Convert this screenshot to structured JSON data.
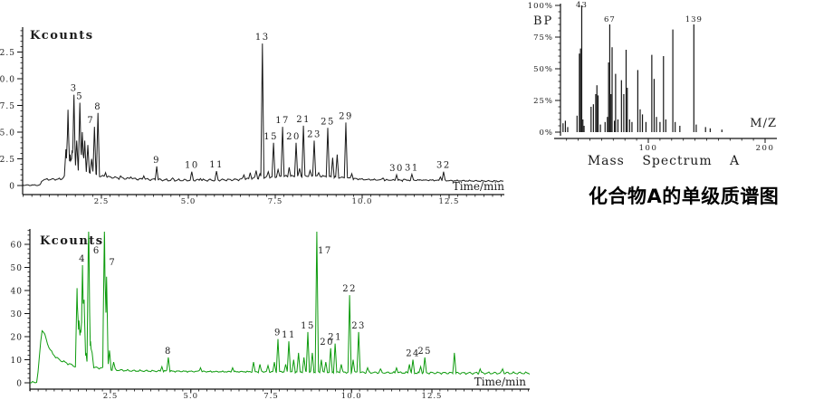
{
  "captions": {
    "ms_caption": "Mass Spectrum A",
    "cn_caption": "化合物A的单级质谱图"
  },
  "colors": {
    "top_trace": "#1a1a1a",
    "bottom_trace": "#0e9b0e",
    "ms_bars": "#161616",
    "text": "#1c1c1c"
  },
  "chart_data": [
    {
      "id": "tic_top",
      "type": "line",
      "title": "Kcounts",
      "xlabel": "Time/min",
      "x_tick_labels": [
        "2.5",
        "5.0",
        "7.5",
        "10.0",
        "12.5"
      ],
      "y_tick_labels": [
        "0",
        "2.5",
        "5.0",
        "7.5",
        "10.0",
        "12.5"
      ],
      "x_range": [
        0.23,
        14.1
      ],
      "y_range": [
        0,
        14.6
      ],
      "baseline": [
        [
          0.23,
          0.02
        ],
        [
          0.74,
          0.02
        ],
        [
          0.8,
          0.55
        ],
        [
          1.35,
          0.6
        ],
        [
          1.45,
          0.9
        ],
        [
          1.75,
          1.4
        ],
        [
          2.05,
          1.3
        ],
        [
          2.3,
          1.0
        ],
        [
          2.55,
          0.85
        ],
        [
          3.0,
          0.7
        ],
        [
          3.6,
          0.6
        ],
        [
          4.5,
          0.5
        ],
        [
          5.5,
          0.5
        ],
        [
          6.4,
          0.55
        ],
        [
          7.0,
          0.7
        ],
        [
          7.6,
          0.85
        ],
        [
          8.3,
          0.9
        ],
        [
          9.0,
          0.85
        ],
        [
          9.6,
          0.7
        ],
        [
          10.1,
          0.55
        ],
        [
          11.0,
          0.5
        ],
        [
          12.0,
          0.5
        ],
        [
          12.6,
          0.45
        ],
        [
          14.1,
          0.4
        ]
      ],
      "peaks_labeled": [
        {
          "label": "3",
          "t": 1.71,
          "v": 8.5
        },
        {
          "label": "5",
          "t": 1.88,
          "v": 7.75
        },
        {
          "label": "7",
          "t": 2.3,
          "v": 5.5,
          "lox": -4
        },
        {
          "label": "8",
          "t": 2.4,
          "v": 6.8
        },
        {
          "label": "9",
          "t": 4.09,
          "v": 1.8
        },
        {
          "label": "10",
          "t": 5.1,
          "v": 1.3
        },
        {
          "label": "11",
          "t": 5.81,
          "v": 1.35
        },
        {
          "label": "13",
          "t": 7.13,
          "v": 13.3
        },
        {
          "label": "15",
          "t": 7.45,
          "v": 4.0,
          "lox": -3
        },
        {
          "label": "17",
          "t": 7.71,
          "v": 5.5
        },
        {
          "label": "20",
          "t": 8.1,
          "v": 4.0,
          "lox": -3
        },
        {
          "label": "21",
          "t": 8.31,
          "v": 5.6
        },
        {
          "label": "23",
          "t": 8.62,
          "v": 4.2
        },
        {
          "label": "25",
          "t": 9.01,
          "v": 5.4
        },
        {
          "label": "29",
          "t": 9.53,
          "v": 5.9
        },
        {
          "label": "30",
          "t": 10.99,
          "v": 1.0
        },
        {
          "label": "31",
          "t": 11.43,
          "v": 1.05
        },
        {
          "label": "32",
          "t": 12.34,
          "v": 1.3
        }
      ],
      "peaks_unlabeled": [
        [
          1.48,
          3.4
        ],
        [
          1.54,
          7.1
        ],
        [
          1.6,
          2.9
        ],
        [
          1.66,
          3.3
        ],
        [
          1.79,
          4.2
        ],
        [
          1.95,
          5.0
        ],
        [
          2.02,
          4.2
        ],
        [
          2.11,
          3.8
        ],
        [
          2.22,
          2.5
        ],
        [
          2.62,
          1.2
        ],
        [
          3.05,
          0.9
        ],
        [
          3.35,
          0.8
        ],
        [
          3.72,
          0.9
        ],
        [
          4.55,
          0.7
        ],
        [
          5.35,
          0.65
        ],
        [
          6.6,
          1.0
        ],
        [
          6.78,
          1.2
        ],
        [
          6.95,
          1.4
        ],
        [
          7.06,
          1.1
        ],
        [
          7.3,
          1.3
        ],
        [
          7.58,
          1.5
        ],
        [
          7.9,
          1.7
        ],
        [
          8.2,
          1.6
        ],
        [
          8.5,
          1.4
        ],
        [
          8.75,
          1.2
        ],
        [
          9.15,
          2.6
        ],
        [
          9.28,
          2.9
        ],
        [
          9.7,
          1.1
        ],
        [
          10.2,
          0.6
        ],
        [
          10.6,
          0.7
        ],
        [
          11.2,
          0.6
        ],
        [
          11.7,
          0.5
        ],
        [
          12.25,
          0.8
        ]
      ]
    },
    {
      "id": "ms",
      "type": "bar",
      "bp_label": "BP",
      "xlabel": "M/Z",
      "y_tick_labels": [
        "100%",
        "75%",
        "50%",
        "25%",
        "0%"
      ],
      "x_tick_labels": [
        "100",
        "200"
      ],
      "x_tick_values": [
        100,
        200
      ],
      "x_range": [
        19,
        210
      ],
      "y_range": [
        0,
        100
      ],
      "labeled_peaks": [
        {
          "label": "43",
          "mz": 43
        },
        {
          "label": "67",
          "mz": 67
        },
        {
          "label": "139",
          "mz": 139
        }
      ],
      "peaks": [
        [
          27,
          7
        ],
        [
          29,
          9
        ],
        [
          31,
          4
        ],
        [
          39,
          13
        ],
        [
          41,
          62
        ],
        [
          42,
          66
        ],
        [
          43,
          100
        ],
        [
          44,
          10
        ],
        [
          45,
          5
        ],
        [
          51,
          20
        ],
        [
          53,
          22
        ],
        [
          55,
          30
        ],
        [
          56,
          37
        ],
        [
          57,
          29
        ],
        [
          59,
          6
        ],
        [
          63,
          8
        ],
        [
          65,
          12
        ],
        [
          66,
          55
        ],
        [
          67,
          85
        ],
        [
          68,
          30
        ],
        [
          69,
          67
        ],
        [
          71,
          9
        ],
        [
          72,
          46
        ],
        [
          74,
          10
        ],
        [
          77,
          41
        ],
        [
          79,
          30
        ],
        [
          81,
          65
        ],
        [
          82,
          35
        ],
        [
          84,
          10
        ],
        [
          86,
          8
        ],
        [
          91,
          49
        ],
        [
          93,
          18
        ],
        [
          95,
          14
        ],
        [
          98,
          8
        ],
        [
          103,
          61
        ],
        [
          105,
          42
        ],
        [
          107,
          12
        ],
        [
          110,
          8
        ],
        [
          113,
          60
        ],
        [
          115,
          10
        ],
        [
          121,
          81
        ],
        [
          123,
          8
        ],
        [
          127,
          5
        ],
        [
          139,
          85
        ],
        [
          141,
          6
        ],
        [
          149,
          4
        ],
        [
          153,
          3
        ],
        [
          163,
          2
        ]
      ]
    },
    {
      "id": "tic_bottom",
      "type": "line",
      "title": "Kcounts",
      "xlabel": "Time/min",
      "x_tick_labels": [
        "2.5",
        "5.0",
        "7.5",
        "10.0",
        "12.5"
      ],
      "y_tick_labels": [
        "0",
        "10",
        "20",
        "30",
        "40",
        "50",
        "60"
      ],
      "x_range": [
        0,
        15.5
      ],
      "y_range": [
        0,
        66
      ],
      "baseline": [
        [
          0.0,
          0.1
        ],
        [
          0.2,
          0.1
        ],
        [
          0.26,
          6
        ],
        [
          0.33,
          18
        ],
        [
          0.38,
          23.5
        ],
        [
          0.44,
          21.5
        ],
        [
          0.55,
          16.5
        ],
        [
          0.7,
          12.5
        ],
        [
          0.9,
          10
        ],
        [
          1.15,
          8.5
        ],
        [
          1.4,
          7.2
        ],
        [
          2.4,
          6.2
        ],
        [
          2.6,
          5.6
        ],
        [
          3.2,
          5.2
        ],
        [
          4.5,
          5.0
        ],
        [
          6.0,
          4.8
        ],
        [
          8.0,
          4.8
        ],
        [
          9.5,
          4.6
        ],
        [
          11.0,
          4.4
        ],
        [
          12.5,
          4.3
        ],
        [
          13.6,
          4.2
        ],
        [
          15.5,
          4.2
        ]
      ],
      "peaks_labeled": [
        {
          "label": "4",
          "t": 1.63,
          "v": 51
        },
        {
          "label": "6",
          "t": 1.82,
          "v": 72
        },
        {
          "label": "7",
          "t": 2.31,
          "v": 72,
          "loy": 13
        },
        {
          "label": "8",
          "t": 4.3,
          "v": 11
        },
        {
          "label": "9",
          "t": 7.71,
          "v": 19
        },
        {
          "label": "11",
          "t": 8.05,
          "v": 18
        },
        {
          "label": "15",
          "t": 8.64,
          "v": 22
        },
        {
          "label": "17",
          "t": 8.92,
          "v": 65.5
        },
        {
          "label": "20",
          "t": 9.35,
          "v": 15,
          "lox": -4
        },
        {
          "label": "21",
          "t": 9.49,
          "v": 17
        },
        {
          "label": "22",
          "t": 9.94,
          "v": 38
        },
        {
          "label": "23",
          "t": 10.22,
          "v": 22
        },
        {
          "label": "24",
          "t": 11.91,
          "v": 10
        },
        {
          "label": "25",
          "t": 12.28,
          "v": 11
        }
      ],
      "peaks_unlabeled": [
        [
          1.46,
          41
        ],
        [
          1.52,
          27
        ],
        [
          1.56,
          22
        ],
        [
          1.6,
          26
        ],
        [
          1.68,
          36
        ],
        [
          1.74,
          13
        ],
        [
          1.88,
          18
        ],
        [
          1.93,
          13
        ],
        [
          2.38,
          46
        ],
        [
          2.47,
          14
        ],
        [
          2.6,
          9
        ],
        [
          4.1,
          7
        ],
        [
          5.3,
          6.5
        ],
        [
          6.3,
          6.5
        ],
        [
          6.95,
          9
        ],
        [
          7.15,
          8
        ],
        [
          7.4,
          7.5
        ],
        [
          7.6,
          9
        ],
        [
          7.95,
          8
        ],
        [
          8.2,
          10
        ],
        [
          8.35,
          13
        ],
        [
          8.52,
          11
        ],
        [
          8.78,
          13
        ],
        [
          9.06,
          10
        ],
        [
          9.2,
          9
        ],
        [
          9.68,
          8
        ],
        [
          10.05,
          10
        ],
        [
          10.5,
          6.5
        ],
        [
          10.9,
          6
        ],
        [
          11.4,
          6.5
        ],
        [
          11.8,
          8
        ],
        [
          12.15,
          7
        ],
        [
          13.2,
          13
        ],
        [
          14.0,
          6
        ],
        [
          14.7,
          6
        ]
      ]
    }
  ]
}
